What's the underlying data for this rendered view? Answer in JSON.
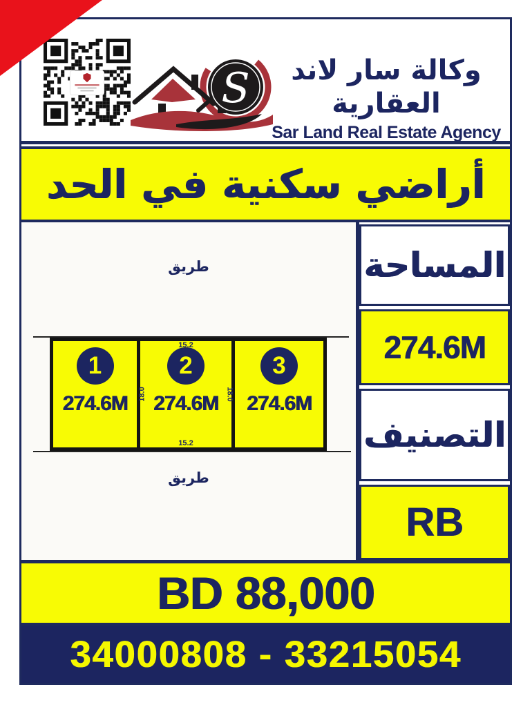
{
  "header": {
    "agency_name_ar": "وكالة سار لاند العقارية",
    "agency_name_en": "Sar Land Real Estate Agency",
    "logo_monogram": "S"
  },
  "icons": {
    "qr": "qr-code",
    "logo": "house-s-logo"
  },
  "banner": {
    "title_ar": "أراضي سكنية في الحد"
  },
  "diagram": {
    "road_top": "طريق",
    "road_bottom": "طريق",
    "plots": [
      {
        "number": "1",
        "area": "274.6M"
      },
      {
        "number": "2",
        "area": "274.6M",
        "width_top": "15.2",
        "width_bottom": "15.2",
        "depth_left": "18.0",
        "depth_right": "18.0"
      },
      {
        "number": "3",
        "area": "274.6M"
      }
    ]
  },
  "sidebar": {
    "area_label_ar": "المساحة",
    "area_value": "274.6M",
    "classification_label_ar": "التصنيف",
    "classification_value": "RB"
  },
  "price_bar": {
    "price": "BD 88,000"
  },
  "phone_bar": {
    "phones": "34000808 - 33215054"
  },
  "colors": {
    "navy": "#1c2560",
    "yellow": "#f8fb04",
    "corner_red": "#e9121b",
    "logo_red": "#a8333a",
    "logo_black": "#1d1a1b"
  }
}
